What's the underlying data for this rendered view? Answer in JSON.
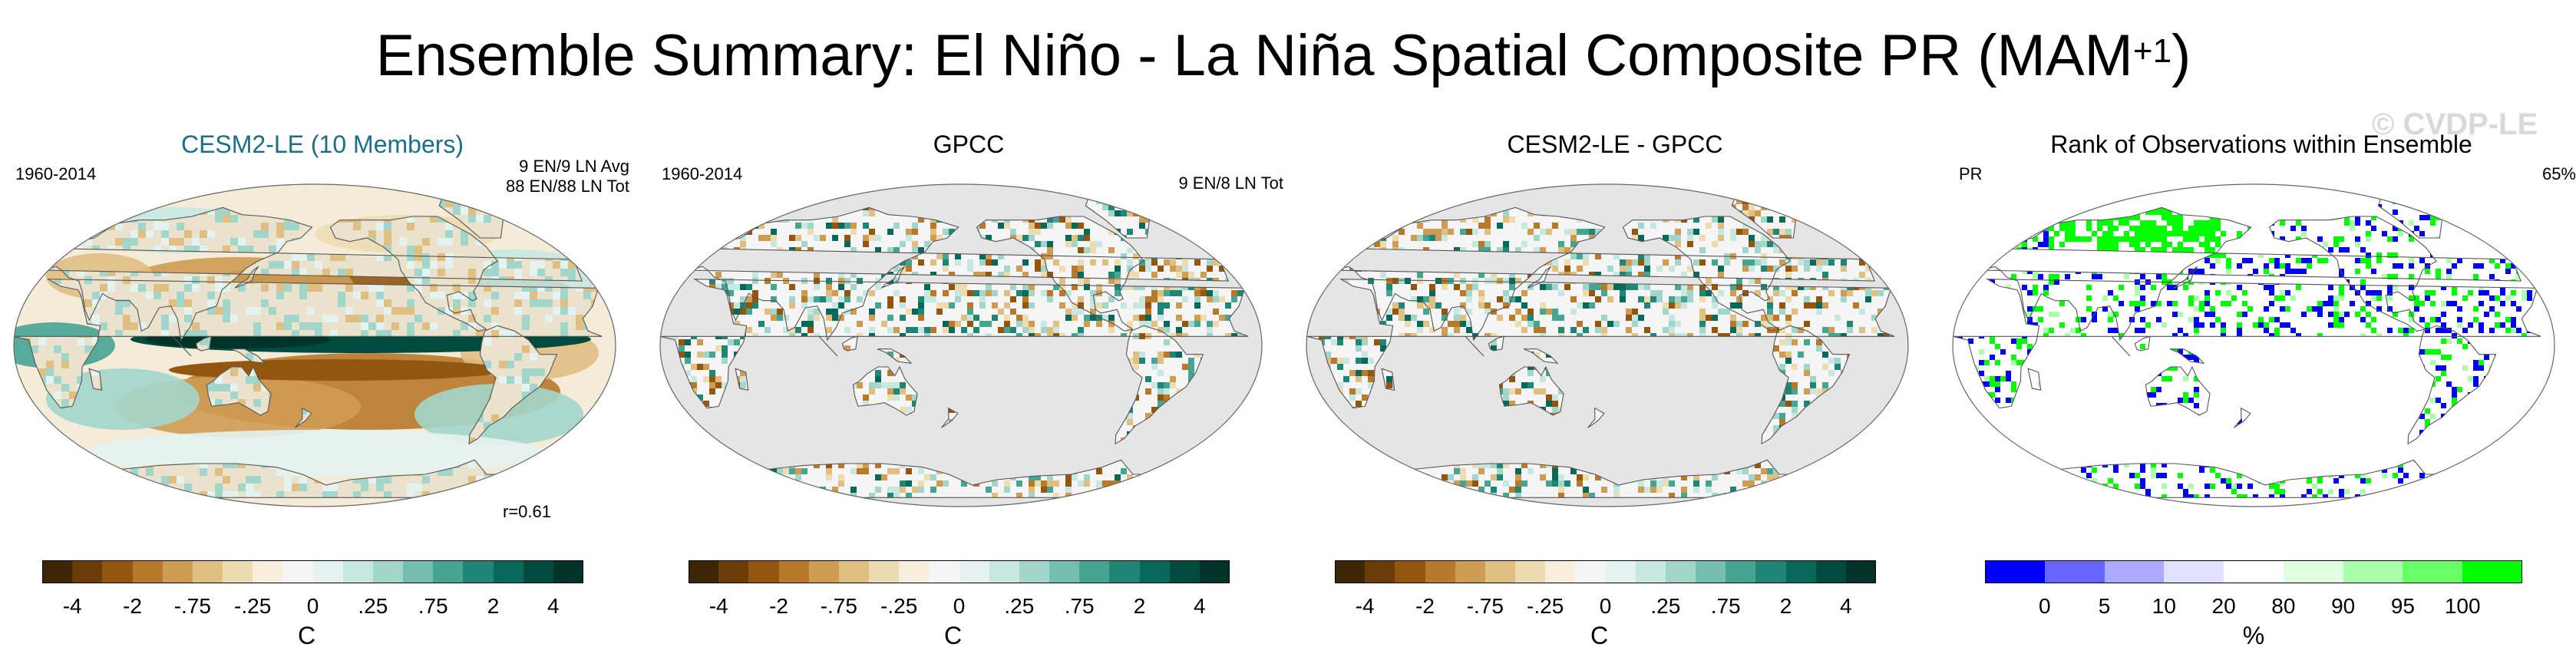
{
  "page": {
    "title": "Ensemble Summary: El Niño - La Niña Spatial Composite PR (MAM",
    "title_sup": "+1",
    "title_end": ")",
    "watermark": "© CVDP-LE"
  },
  "panels": [
    {
      "title": "CESM2-LE (10 Members)",
      "title_color": "#1a6f8a",
      "left_text": "1960-2014",
      "right_text_1": "9 EN/9 LN Avg",
      "right_text_2": "88 EN/88 LN Tot",
      "bottom_right": "r=0.61",
      "map_type": "model",
      "colorbar": {
        "colors": [
          "#3d2606",
          "#6b3c06",
          "#93560e",
          "#b8792a",
          "#cf9c53",
          "#e0bf82",
          "#eddcb0",
          "#f7efdc",
          "#f5f5f5",
          "#e4f3f0",
          "#c7e8e1",
          "#a2d6cb",
          "#74bfb0",
          "#46a493",
          "#1f8676",
          "#08695a",
          "#004b3d",
          "#003329"
        ],
        "ticks": [
          "-4",
          "-2",
          "-.75",
          "-.25",
          "0",
          ".25",
          ".75",
          "2",
          "4"
        ],
        "unit": "C"
      }
    },
    {
      "title": "GPCC",
      "title_color": "#000000",
      "left_text": "1960-2014",
      "right_text_1": "9 EN/8 LN Tot",
      "right_text_2": "",
      "bottom_right": "",
      "map_type": "obs",
      "colorbar": {
        "colors": [
          "#3d2606",
          "#6b3c06",
          "#93560e",
          "#b8792a",
          "#cf9c53",
          "#e0bf82",
          "#eddcb0",
          "#f7efdc",
          "#f5f5f5",
          "#e4f3f0",
          "#c7e8e1",
          "#a2d6cb",
          "#74bfb0",
          "#46a493",
          "#1f8676",
          "#08695a",
          "#004b3d",
          "#003329"
        ],
        "ticks": [
          "-4",
          "-2",
          "-.75",
          "-.25",
          "0",
          ".25",
          ".75",
          "2",
          "4"
        ],
        "unit": "C"
      }
    },
    {
      "title": "CESM2-LE - GPCC",
      "title_color": "#000000",
      "left_text": "",
      "right_text_1": "",
      "right_text_2": "",
      "bottom_right": "",
      "map_type": "diff",
      "colorbar": {
        "colors": [
          "#3d2606",
          "#6b3c06",
          "#93560e",
          "#b8792a",
          "#cf9c53",
          "#e0bf82",
          "#eddcb0",
          "#f7efdc",
          "#f5f5f5",
          "#e4f3f0",
          "#c7e8e1",
          "#a2d6cb",
          "#74bfb0",
          "#46a493",
          "#1f8676",
          "#08695a",
          "#004b3d",
          "#003329"
        ],
        "ticks": [
          "-4",
          "-2",
          "-.75",
          "-.25",
          "0",
          ".25",
          ".75",
          "2",
          "4"
        ],
        "unit": "C"
      }
    },
    {
      "title": "Rank of Observations within Ensemble",
      "title_color": "#000000",
      "left_text": "PR",
      "right_text_1": "65%",
      "right_text_2": "",
      "bottom_right": "",
      "map_type": "rank",
      "colorbar": {
        "colors": [
          "#0000ff",
          "#6666ff",
          "#aaaaff",
          "#e0e0ff",
          "#ffffff",
          "#e0ffe0",
          "#aaffaa",
          "#66ff66",
          "#00ff00"
        ],
        "ticks": [
          "0",
          "5",
          "10",
          "20",
          "80",
          "90",
          "95",
          "100"
        ],
        "unit": "%"
      }
    }
  ]
}
